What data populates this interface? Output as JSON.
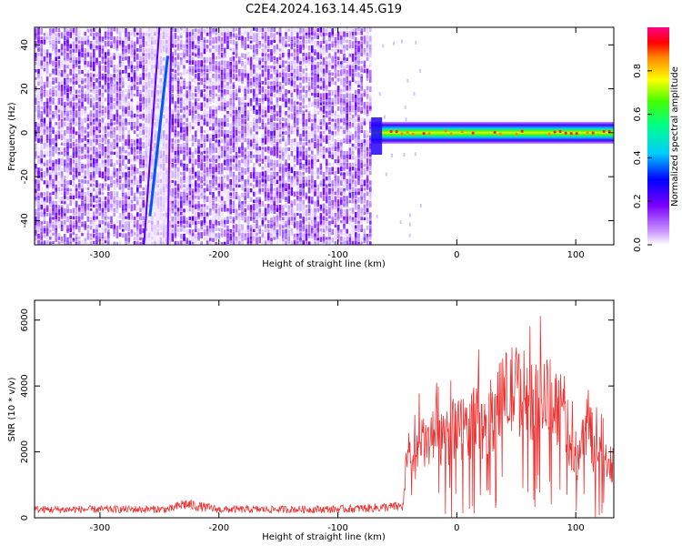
{
  "figure_title": "C2E4.2024.163.14.45.G19",
  "chart_data": [
    {
      "type": "heatmap",
      "panel": "top",
      "xlabel": "Height of straight line (km)",
      "ylabel": "Frequency (Hz)",
      "xlim": [
        -355,
        132
      ],
      "ylim": [
        -51,
        48
      ],
      "xticks": [
        -300,
        -200,
        -100,
        0,
        100
      ],
      "yticks": [
        -40,
        -20,
        0,
        20,
        40
      ],
      "colorbar": {
        "label": "Normalized spectral amplitude",
        "range": [
          0,
          1
        ],
        "ticks": [
          0.0,
          0.2,
          0.4,
          0.6,
          0.8
        ],
        "colormap": "rainbow (white -> violet -> blue -> cyan -> green -> yellow -> red -> magenta)"
      },
      "regions": [
        {
          "name": "noise",
          "x_range": [
            -355,
            -72
          ],
          "freq_range": [
            -51,
            48
          ],
          "amplitude_level": 0.15
        },
        {
          "name": "diagonal streak",
          "x_range": [
            -262,
            -240
          ],
          "freq_range": [
            -51,
            48
          ],
          "amplitude_level": 0.2
        },
        {
          "name": "carrier band",
          "x_range": [
            -72,
            132
          ],
          "freq_center": 0,
          "freq_halfwidth": 5,
          "amplitude_level": 0.9
        }
      ],
      "grid": false
    },
    {
      "type": "line",
      "panel": "bottom",
      "xlabel": "Height of straight line (km)",
      "ylabel": "SNR (10 * v/v)",
      "xlim": [
        -355,
        132
      ],
      "ylim": [
        0,
        6600
      ],
      "xticks": [
        -300,
        -200,
        -100,
        0,
        100
      ],
      "yticks": [
        0,
        2000,
        4000,
        6000
      ],
      "color": "#ee3333",
      "envelope": {
        "x": [
          -355,
          -240,
          -230,
          -200,
          -100,
          -70,
          -45,
          -42,
          -35,
          -30,
          -20,
          -10,
          0,
          10,
          15,
          20,
          25,
          30,
          40,
          50,
          60,
          70,
          80,
          90,
          95,
          100,
          105,
          110,
          115,
          120,
          132
        ],
        "y": [
          250,
          260,
          420,
          250,
          260,
          300,
          350,
          2100,
          1900,
          2300,
          2500,
          2400,
          3000,
          2800,
          3200,
          2700,
          3100,
          3300,
          3900,
          4100,
          3900,
          3700,
          3800,
          3400,
          2500,
          1500,
          2600,
          3200,
          2200,
          1900,
          1750
        ]
      },
      "grid": false
    }
  ]
}
